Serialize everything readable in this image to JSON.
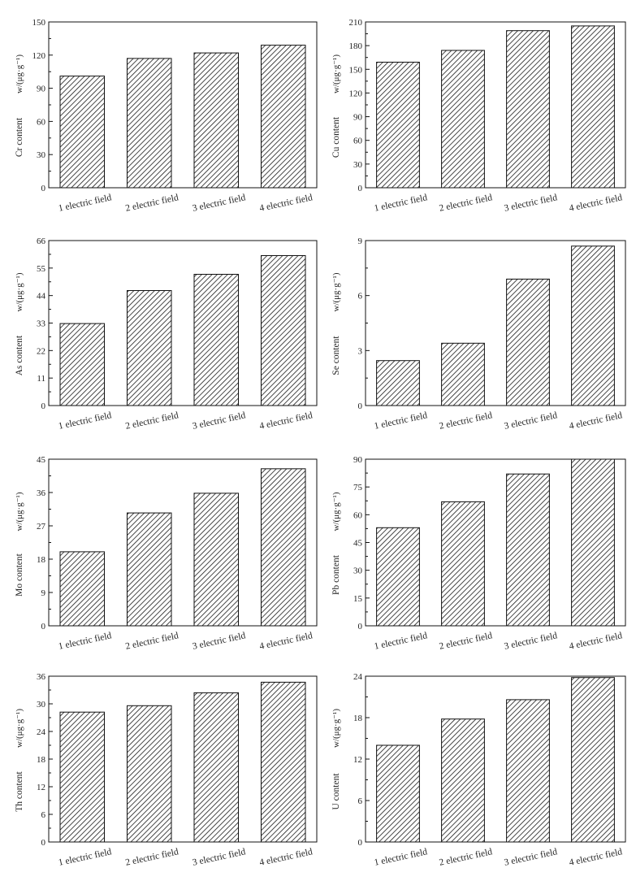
{
  "chart_data": [
    {
      "type": "bar",
      "categories": [
        "1 electric field",
        "2 electric field",
        "3 electric field",
        "4 electric field"
      ],
      "values": [
        101,
        117,
        122,
        129
      ],
      "ylabel": "Cr content",
      "yunit": "w/(μg·g⁻¹)",
      "ylim": [
        0,
        150
      ],
      "yticks": [
        0,
        30,
        60,
        90,
        120,
        150
      ],
      "hatch": "diagonal"
    },
    {
      "type": "bar",
      "categories": [
        "1 electric field",
        "2 electric field",
        "3 electric field",
        "4 electric field"
      ],
      "values": [
        159,
        174,
        199,
        205
      ],
      "ylabel": "Cu content",
      "yunit": "w/(μg·g⁻¹)",
      "ylim": [
        0,
        210
      ],
      "yticks": [
        0,
        30,
        60,
        90,
        120,
        150,
        180,
        210
      ],
      "hatch": "diagonal"
    },
    {
      "type": "bar",
      "categories": [
        "1 electric field",
        "2 electric field",
        "3 electric field",
        "4 electric field"
      ],
      "values": [
        32.8,
        46,
        52.5,
        60
      ],
      "ylabel": "As content",
      "yunit": "w/(μg·g⁻¹)",
      "ylim": [
        0,
        66
      ],
      "yticks": [
        0,
        11,
        22,
        33,
        44,
        55,
        66
      ],
      "hatch": "diagonal"
    },
    {
      "type": "bar",
      "categories": [
        "1 electric field",
        "2 electric field",
        "3 electric field",
        "4 electric field"
      ],
      "values": [
        2.45,
        3.4,
        6.9,
        8.7
      ],
      "ylabel": "Se content",
      "yunit": "w/(μg·g⁻¹)",
      "ylim": [
        0,
        9
      ],
      "yticks": [
        0,
        3,
        6,
        9
      ],
      "hatch": "diagonal"
    },
    {
      "type": "bar",
      "categories": [
        "1 electric field",
        "2 electric field",
        "3 electric field",
        "4 electric field"
      ],
      "values": [
        20,
        30.5,
        35.8,
        42.4
      ],
      "ylabel": "Mo content",
      "yunit": "w/(μg·g⁻¹)",
      "ylim": [
        0,
        45
      ],
      "yticks": [
        0,
        9,
        18,
        27,
        36,
        45
      ],
      "hatch": "diagonal"
    },
    {
      "type": "bar",
      "categories": [
        "1 electric field",
        "2 electric field",
        "3 electric field",
        "4 electric field"
      ],
      "values": [
        53,
        67,
        82,
        90
      ],
      "ylabel": "Pb content",
      "yunit": "w/(μg·g⁻¹)",
      "ylim": [
        0,
        90
      ],
      "yticks": [
        0,
        15,
        30,
        45,
        60,
        75,
        90
      ],
      "hatch": "diagonal"
    },
    {
      "type": "bar",
      "categories": [
        "1 electric field",
        "2 electric field",
        "3 electric field",
        "4 electric field"
      ],
      "values": [
        28.2,
        29.6,
        32.4,
        34.7
      ],
      "ylabel": "Th content",
      "yunit": "w/(μg·g⁻¹)",
      "ylim": [
        0,
        36
      ],
      "yticks": [
        0,
        6,
        12,
        18,
        24,
        30,
        36
      ],
      "hatch": "diagonal"
    },
    {
      "type": "bar",
      "categories": [
        "1 electric field",
        "2 electric field",
        "3 electric field",
        "4 electric field"
      ],
      "values": [
        14,
        17.8,
        20.6,
        23.8
      ],
      "ylabel": "U content",
      "yunit": "w/(μg·g⁻¹)",
      "ylim": [
        0,
        24
      ],
      "yticks": [
        0,
        6,
        12,
        18,
        24
      ],
      "hatch": "diagonal"
    }
  ]
}
